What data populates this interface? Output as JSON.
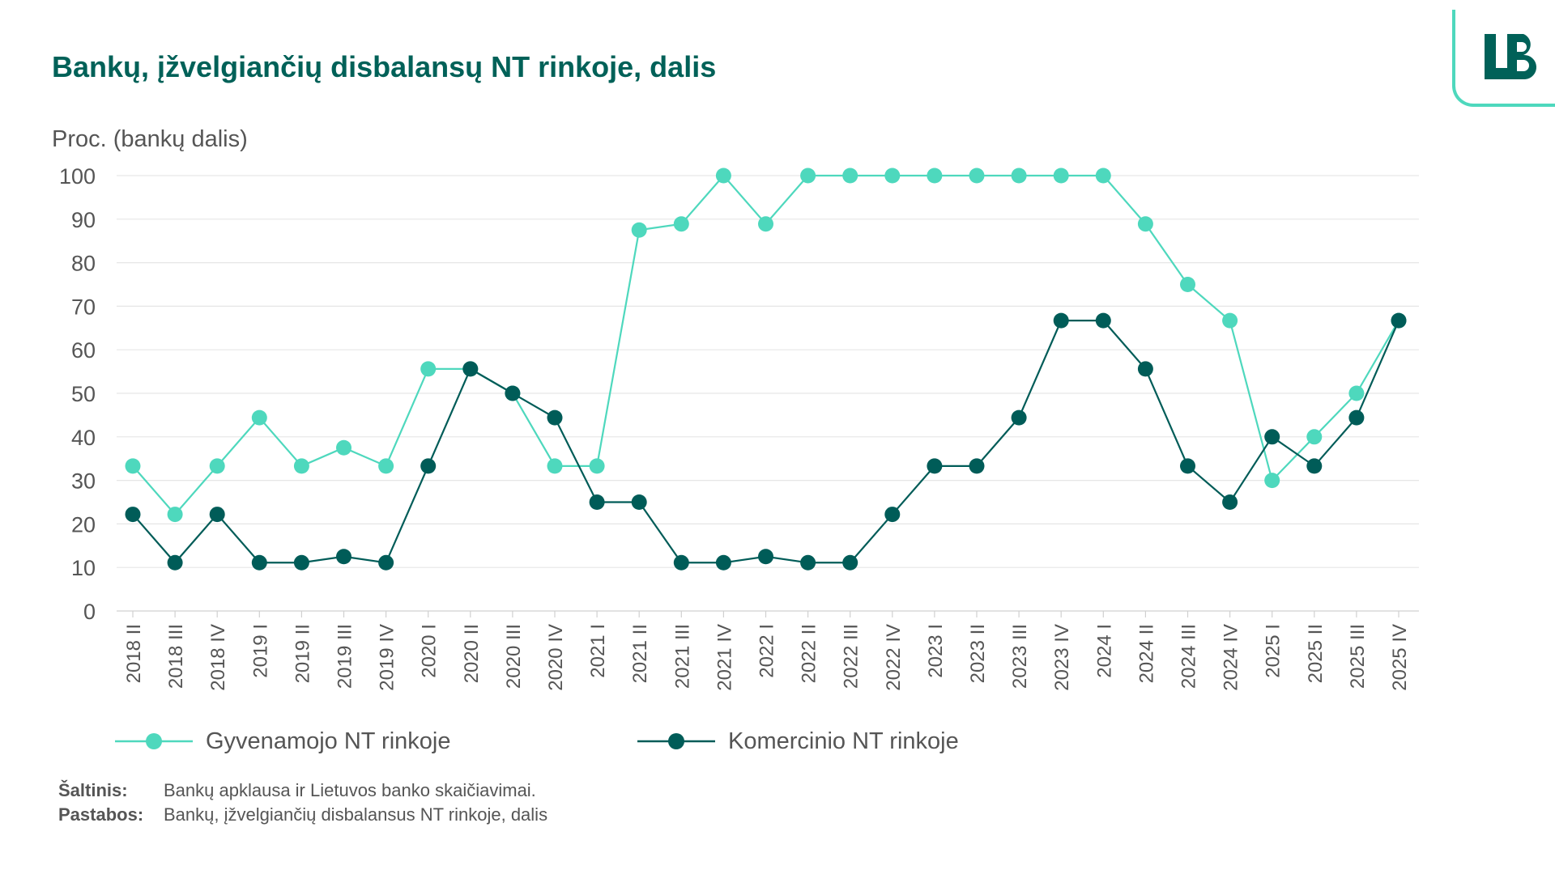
{
  "title": "Bankų, įžvelgiančių disbalansų NT rinkoje, dalis",
  "logo_text": "LB",
  "colors": {
    "title": "#006158",
    "light": "#4ed8bd",
    "dark": "#005c58",
    "grid": "#e6e6e6",
    "text": "#555555"
  },
  "chart_data": {
    "type": "line",
    "ylabel": "Proc. (bankų dalis)",
    "ylim": [
      0,
      100
    ],
    "yticks": [
      0,
      10,
      20,
      30,
      40,
      50,
      60,
      70,
      80,
      90,
      100
    ],
    "grid": true,
    "legend_position": "bottom",
    "categories": [
      "2018 II",
      "2018 III",
      "2018 IV",
      "2019 I",
      "2019 II",
      "2019 III",
      "2019 IV",
      "2020 I",
      "2020 II",
      "2020 III",
      "2020 IV",
      "2021 I",
      "2021 II",
      "2021 III",
      "2021 IV",
      "2022 I",
      "2022 II",
      "2022 III",
      "2022 IV",
      "2023 I",
      "2023 II",
      "2023 III",
      "2023 IV",
      "2024 I",
      "2024 II",
      "2024 III",
      "2024 IV",
      "2025 I",
      "2025 II",
      "2025 III",
      "2025 IV"
    ],
    "series": [
      {
        "name": "Gyvenamojo NT rinkoje",
        "color": "#4ed8bd",
        "values": [
          33.3,
          22.2,
          33.3,
          44.4,
          33.3,
          37.5,
          33.3,
          55.6,
          55.6,
          50,
          33.3,
          33.3,
          87.5,
          88.9,
          100,
          88.9,
          100,
          100,
          100,
          100,
          100,
          100,
          100,
          100,
          88.9,
          75,
          66.7,
          30,
          40,
          50,
          66.7
        ]
      },
      {
        "name": "Komercinio NT rinkoje",
        "color": "#005c58",
        "values": [
          22.2,
          11.1,
          22.2,
          11.1,
          11.1,
          12.5,
          11.1,
          33.3,
          55.6,
          50,
          44.4,
          25,
          25,
          11.1,
          11.1,
          12.5,
          11.1,
          11.1,
          22.2,
          33.3,
          33.3,
          44.4,
          66.7,
          66.7,
          55.6,
          33.3,
          25,
          40,
          33.3,
          44.4,
          66.7
        ]
      }
    ]
  },
  "footer": {
    "source_label": "Šaltinis:",
    "source_text": "Bankų apklausa ir Lietuvos banko skaičiavimai.",
    "notes_label": "Pastabos:",
    "notes_text": "Bankų, įžvelgiančių disbalansus NT rinkoje, dalis"
  }
}
